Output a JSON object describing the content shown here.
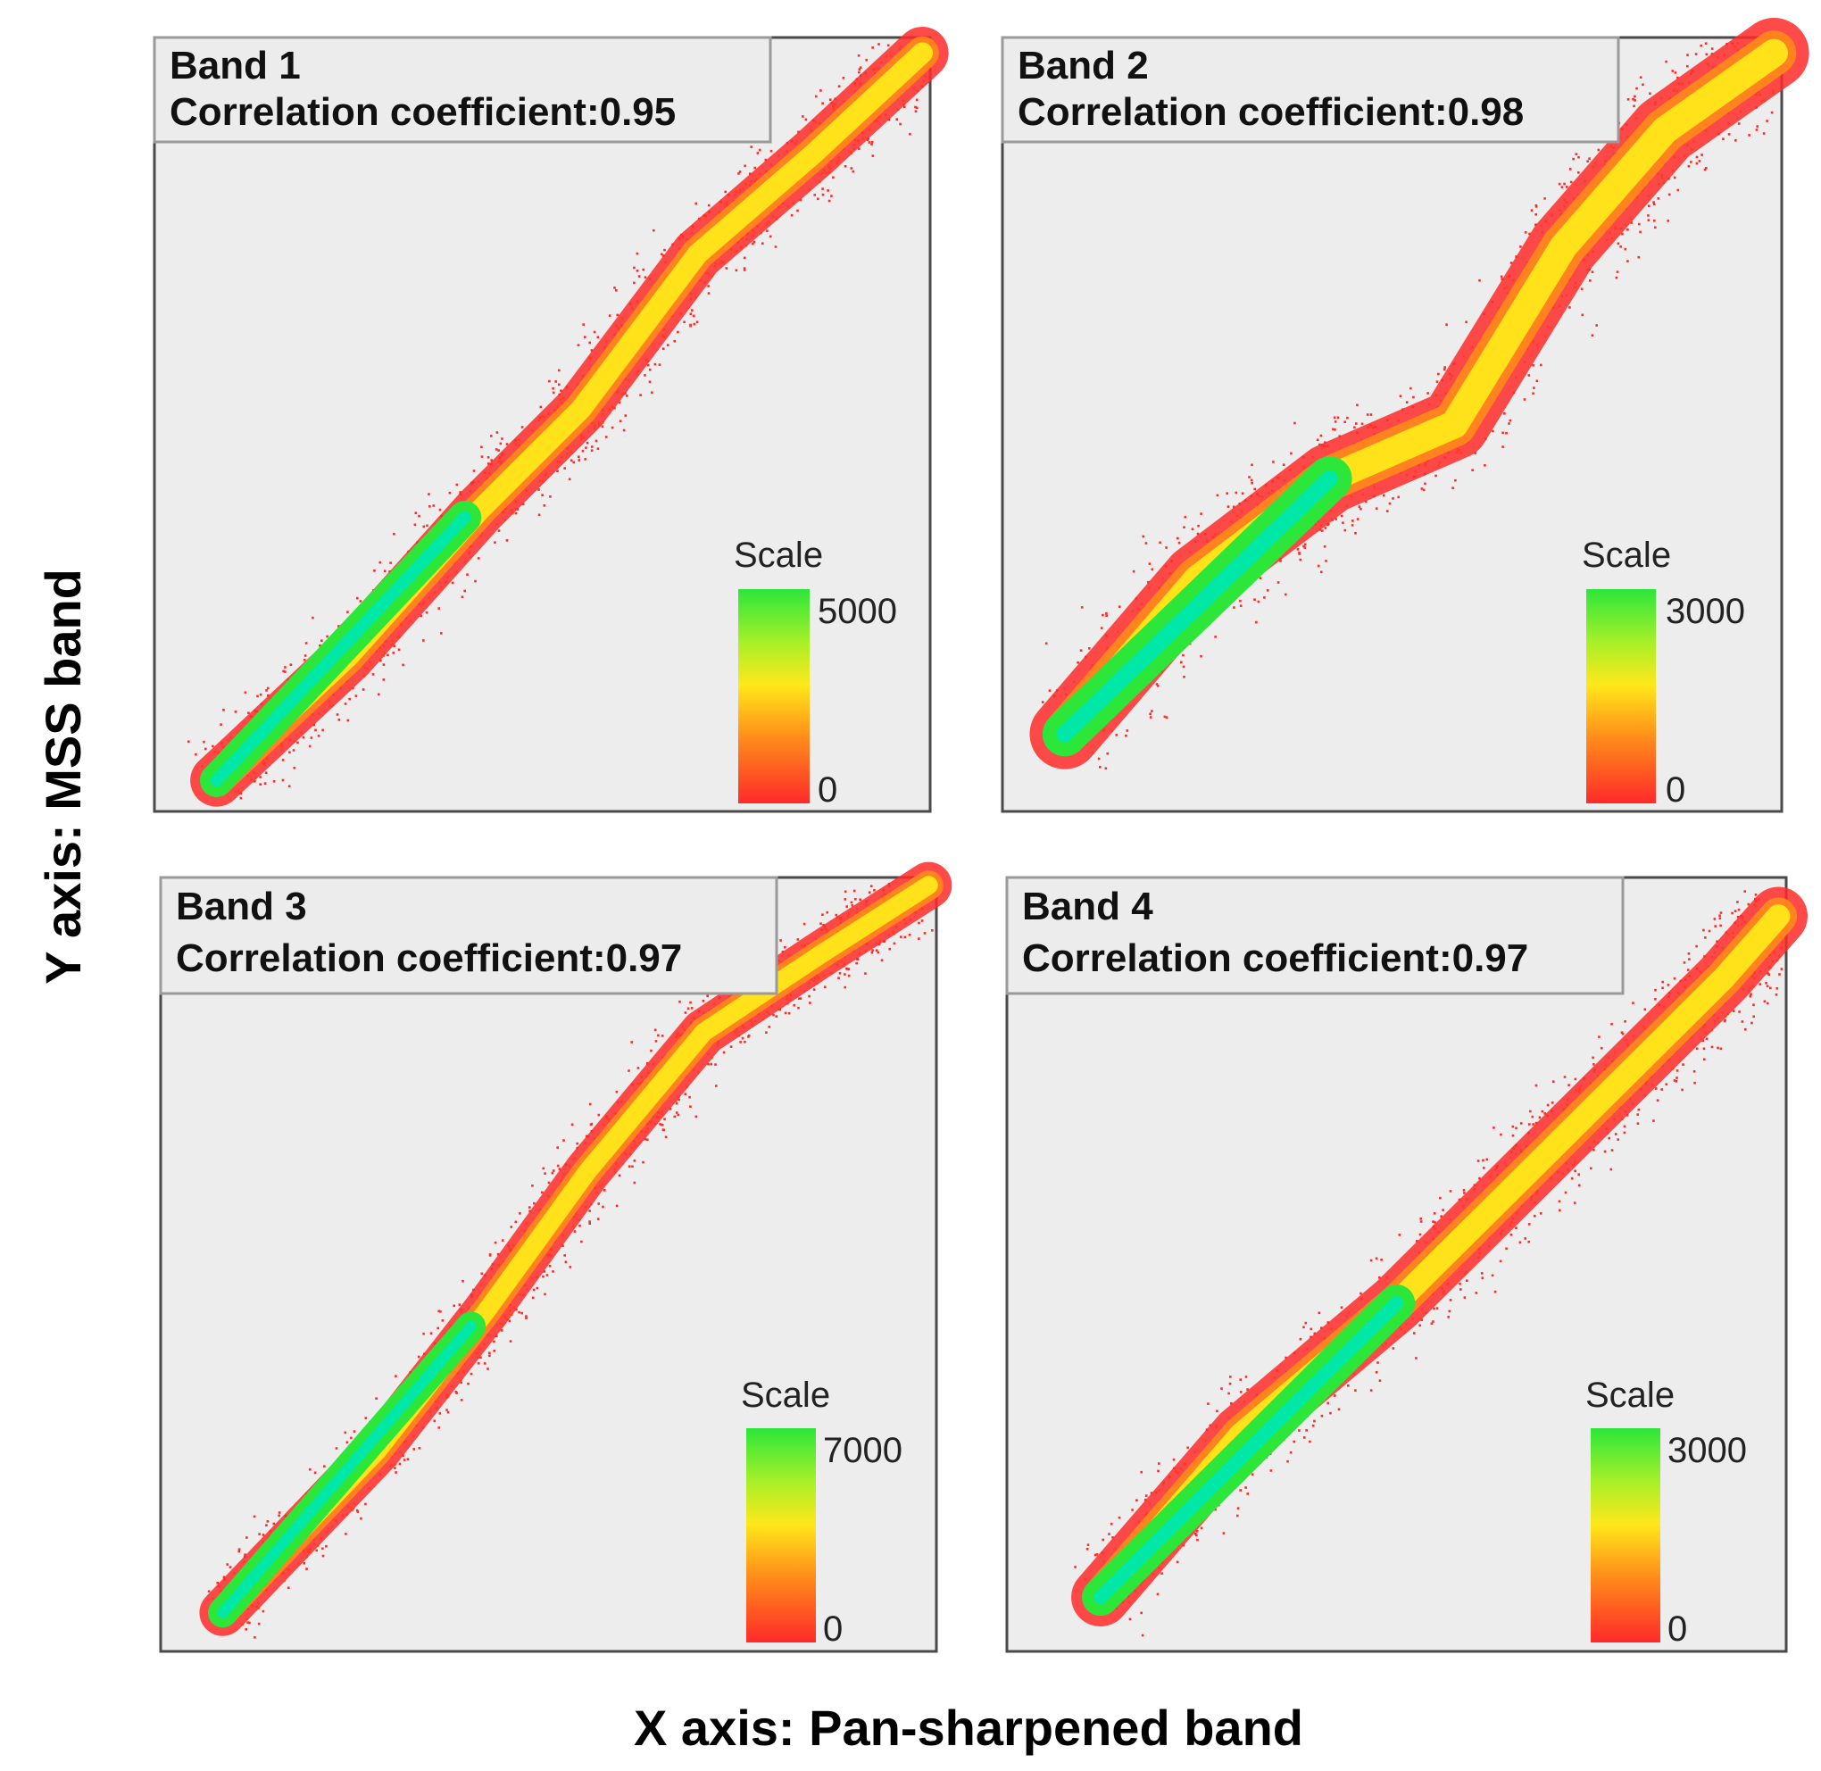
{
  "figure": {
    "ylabel": "Y axis: MSS band",
    "xlabel": "X axis: Pan-sharpened band",
    "scale_label": "Scale"
  },
  "colors": {
    "background": "#ededed",
    "frame": "#4a4a4a",
    "legend_box": "#ececec",
    "density_low": "#ff2a2a",
    "density_mid_low": "#ff8a1a",
    "density_mid": "#ffe71a",
    "density_high": "#2ce63a",
    "density_peak": "#00e8a8"
  },
  "chart_data": [
    {
      "type": "heatmap",
      "title": "Band 1",
      "subtitle": "Correlation coefficient:0.95",
      "correlation_coefficient": 0.95,
      "scale": {
        "label": "Scale",
        "max": 5000,
        "min": 0,
        "max_label": "5000",
        "min_label": "0"
      },
      "ridge": [
        [
          0.08,
          0.04
        ],
        [
          0.25,
          0.2
        ],
        [
          0.42,
          0.39
        ],
        [
          0.55,
          0.52
        ],
        [
          0.7,
          0.72
        ],
        [
          0.85,
          0.85
        ],
        [
          0.99,
          0.98
        ]
      ],
      "core": [
        [
          0.08,
          0.04
        ],
        [
          0.4,
          0.38
        ]
      ],
      "spread": 0.045
    },
    {
      "type": "heatmap",
      "title": "Band 2",
      "subtitle": "Correlation coefficient:0.98",
      "correlation_coefficient": 0.98,
      "scale": {
        "label": "Scale",
        "max": 3000,
        "min": 0,
        "max_label": "3000",
        "min_label": "0"
      },
      "ridge": [
        [
          0.08,
          0.1
        ],
        [
          0.25,
          0.3
        ],
        [
          0.42,
          0.43
        ],
        [
          0.58,
          0.5
        ],
        [
          0.72,
          0.73
        ],
        [
          0.85,
          0.88
        ],
        [
          0.99,
          0.98
        ]
      ],
      "core": [
        [
          0.08,
          0.1
        ],
        [
          0.42,
          0.43
        ]
      ],
      "spread": 0.06
    },
    {
      "type": "heatmap",
      "title": "Band 3",
      "subtitle": "Correlation coefficient:0.97",
      "correlation_coefficient": 0.97,
      "scale": {
        "label": "Scale",
        "max": 7000,
        "min": 0,
        "max_label": "7000",
        "min_label": "0"
      },
      "ridge": [
        [
          0.08,
          0.05
        ],
        [
          0.28,
          0.26
        ],
        [
          0.42,
          0.44
        ],
        [
          0.55,
          0.62
        ],
        [
          0.7,
          0.8
        ],
        [
          0.85,
          0.9
        ],
        [
          0.99,
          0.99
        ]
      ],
      "core": [
        [
          0.08,
          0.05
        ],
        [
          0.4,
          0.42
        ]
      ],
      "spread": 0.04
    },
    {
      "type": "heatmap",
      "title": "Band 4",
      "subtitle": "Correlation coefficient:0.97",
      "correlation_coefficient": 0.97,
      "scale": {
        "label": "Scale",
        "max": 3000,
        "min": 0,
        "max_label": "3000",
        "min_label": "0"
      },
      "ridge": [
        [
          0.12,
          0.07
        ],
        [
          0.3,
          0.28
        ],
        [
          0.5,
          0.45
        ],
        [
          0.65,
          0.6
        ],
        [
          0.8,
          0.75
        ],
        [
          0.92,
          0.87
        ],
        [
          0.99,
          0.95
        ]
      ],
      "core": [
        [
          0.12,
          0.07
        ],
        [
          0.5,
          0.45
        ]
      ],
      "spread": 0.05
    }
  ]
}
